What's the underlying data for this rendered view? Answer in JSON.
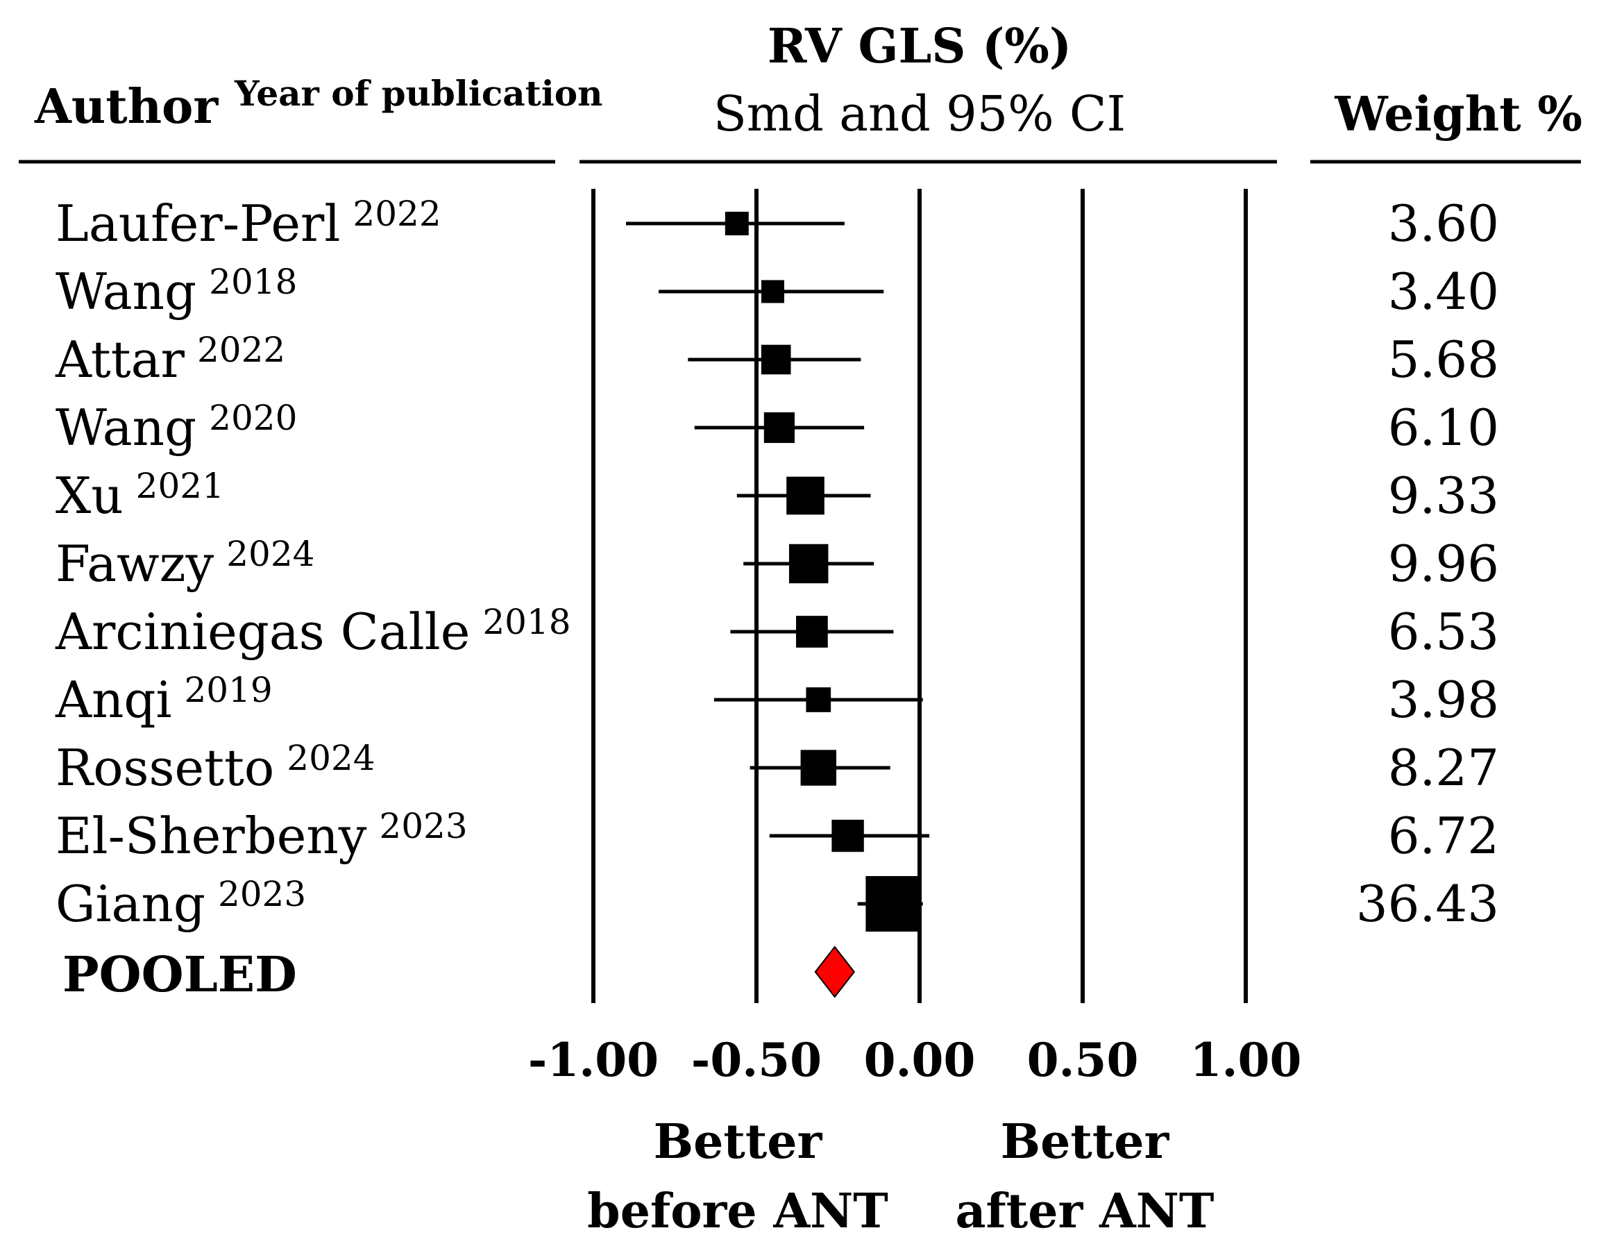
{
  "chart_data": {
    "type": "forest",
    "header": {
      "author_label": "Author",
      "year_label": "Year of publication",
      "title": "RV GLS (%)",
      "subtitle": "Smd and 95% CI",
      "weight_label": "Weight %"
    },
    "studies": [
      {
        "author": "Laufer-Perl",
        "year": "2022",
        "smd": -0.56,
        "ci_low": -0.9,
        "ci_high": -0.23,
        "weight": "3.60"
      },
      {
        "author": "Wang",
        "year": "2018",
        "smd": -0.45,
        "ci_low": -0.8,
        "ci_high": -0.11,
        "weight": "3.40"
      },
      {
        "author": "Attar",
        "year": "2022",
        "smd": -0.44,
        "ci_low": -0.71,
        "ci_high": -0.18,
        "weight": "5.68"
      },
      {
        "author": "Wang",
        "year": "2020",
        "smd": -0.43,
        "ci_low": -0.69,
        "ci_high": -0.17,
        "weight": "6.10"
      },
      {
        "author": "Xu",
        "year": "2021",
        "smd": -0.35,
        "ci_low": -0.56,
        "ci_high": -0.15,
        "weight": "9.33"
      },
      {
        "author": "Fawzy",
        "year": "2024",
        "smd": -0.34,
        "ci_low": -0.54,
        "ci_high": -0.14,
        "weight": "9.96"
      },
      {
        "author": "Arciniegas Calle",
        "year": "2018",
        "smd": -0.33,
        "ci_low": -0.58,
        "ci_high": -0.08,
        "weight": "6.53"
      },
      {
        "author": "Anqi",
        "year": "2019",
        "smd": -0.31,
        "ci_low": -0.63,
        "ci_high": 0.01,
        "weight": "3.98"
      },
      {
        "author": "Rossetto",
        "year": "2024",
        "smd": -0.31,
        "ci_low": -0.52,
        "ci_high": -0.09,
        "weight": "8.27"
      },
      {
        "author": "El-Sherbeny",
        "year": "2023",
        "smd": -0.22,
        "ci_low": -0.46,
        "ci_high": 0.03,
        "weight": "6.72"
      },
      {
        "author": "Giang",
        "year": "2023",
        "smd": -0.08,
        "ci_low": -0.19,
        "ci_high": 0.01,
        "weight": "36.43"
      }
    ],
    "pooled": {
      "label": "POOLED",
      "smd": -0.26
    },
    "xaxis": {
      "range": [
        -1.0,
        1.0
      ],
      "gridlines": [
        -1.0,
        -0.5,
        0.0,
        0.5,
        1.0
      ],
      "tick_labels": [
        "-1.00",
        "-0.50",
        "0.00",
        "0.50",
        "1.00"
      ]
    },
    "direction_labels": {
      "left_line1": "Better",
      "left_line2": "before ANT",
      "right_line1": "Better",
      "right_line2": "after ANT"
    },
    "colors": {
      "ink": "#000000",
      "pooled_fill": "#ff0000"
    }
  }
}
